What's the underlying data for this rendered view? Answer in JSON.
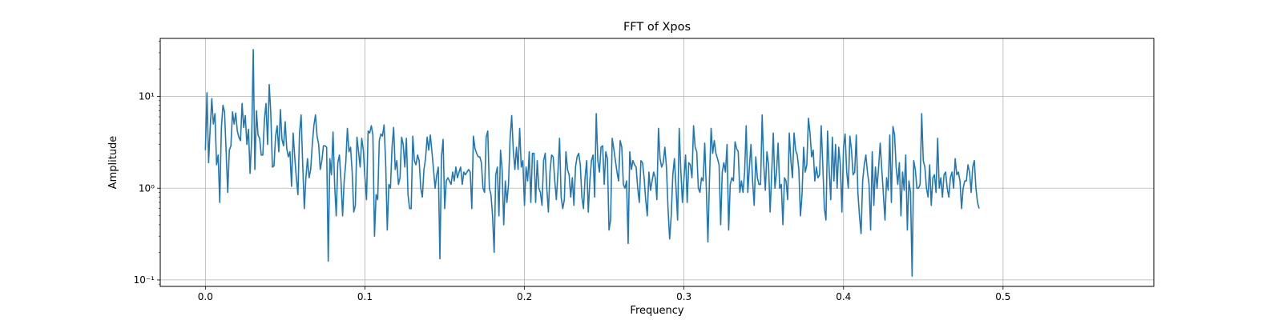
{
  "chart_data": {
    "type": "line",
    "title": "FFT of Xpos",
    "xlabel": "Frequency",
    "ylabel": "Amplitude",
    "xlim": [
      -0.0283,
      0.5945
    ],
    "ylim": [
      0.085,
      43
    ],
    "yscale": "log",
    "grid": true,
    "x_ticks": [
      0.0,
      0.1,
      0.2,
      0.3,
      0.4,
      0.5
    ],
    "x_tick_labels": [
      "0.0",
      "0.1",
      "0.2",
      "0.3",
      "0.4",
      "0.5"
    ],
    "y_ticks": [
      0.1,
      1,
      10
    ],
    "y_tick_labels": [
      "10⁻¹",
      "10⁰",
      "10¹"
    ],
    "line_color": "#1f77b4",
    "series": [
      {
        "x_start": 0.0,
        "x_step": 0.001,
        "values": [
          2.6,
          11.0,
          1.9,
          4.5,
          9.5,
          5.0,
          6.5,
          1.8,
          2.3,
          0.7,
          4.5,
          8.0,
          6.8,
          2.5,
          0.9,
          2.6,
          2.9,
          6.8,
          5.0,
          6.6,
          4.2,
          3.6,
          3.3,
          8.4,
          4.6,
          6.2,
          3.0,
          4.4,
          1.45,
          3.4,
          32.5,
          1.6,
          7.0,
          3.8,
          3.5,
          2.3,
          2.3,
          5.6,
          8.4,
          3.0,
          13.5,
          6.5,
          1.7,
          1.75,
          3.7,
          4.8,
          2.5,
          7.2,
          3.4,
          2.9,
          5.3,
          2.7,
          2.2,
          2.5,
          1.05,
          4.0,
          2.2,
          1.3,
          0.85,
          4.0,
          6.3,
          1.8,
          0.6,
          1.3,
          2.1,
          1.3,
          1.6,
          3.0,
          4.8,
          6.3,
          3.7,
          3.0,
          1.6,
          2.0,
          2.9,
          2.9,
          2.8,
          0.16,
          2.1,
          1.4,
          4.1,
          1.1,
          0.5,
          1.9,
          2.3,
          1.2,
          0.5,
          1.2,
          1.9,
          4.5,
          2.5,
          2.8,
          1.5,
          0.55,
          0.65,
          3.6,
          2.5,
          1.7,
          3.5,
          2.6,
          1.3,
          0.75,
          4.2,
          4.0,
          4.8,
          3.8,
          0.3,
          0.85,
          0.75,
          3.3,
          3.9,
          3.7,
          4.9,
          1.9,
          0.35,
          1.1,
          1.0,
          2.8,
          4.6,
          1.6,
          2.0,
          1.1,
          1.3,
          3.6,
          3.0,
          1.7,
          3.5,
          0.85,
          0.6,
          0.6,
          3.7,
          2.0,
          1.8,
          2.3,
          2.0,
          1.0,
          0.8,
          1.6,
          2.1,
          3.6,
          2.6,
          3.8,
          2.5,
          1.6,
          1.0,
          1.4,
          1.7,
          0.17,
          2.2,
          3.4,
          0.6,
          1.2,
          1.3,
          1.2,
          1.1,
          1.5,
          1.2,
          1.7,
          1.3,
          1.5,
          1.7,
          1.1,
          1.5,
          1.4,
          1.5,
          1.6,
          1.5,
          0.6,
          3.7,
          2.7,
          2.4,
          2.2,
          2.2,
          1.9,
          1.0,
          0.9,
          3.6,
          4.2,
          1.0,
          0.85,
          0.5,
          0.2,
          1.4,
          1.7,
          0.5,
          2.6,
          1.6,
          0.4,
          1.2,
          0.7,
          1.1,
          3.5,
          6.2,
          2.6,
          1.6,
          2.8,
          1.6,
          4.5,
          1.7,
          2.0,
          0.65,
          1.7,
          1.2,
          2.5,
          0.7,
          2.4,
          2.4,
          0.7,
          2.0,
          1.0,
          0.9,
          0.65,
          2.0,
          2.4,
          1.0,
          0.55,
          1.5,
          2.3,
          2.2,
          1.2,
          0.75,
          1.5,
          3.5,
          0.8,
          0.6,
          0.75,
          2.5,
          1.6,
          1.4,
          0.8,
          1.3,
          0.65,
          1.7,
          2.2,
          2.4,
          1.8,
          0.8,
          0.6,
          1.3,
          2.0,
          0.55,
          1.2,
          2.0,
          2.3,
          0.8,
          6.5,
          2.0,
          1.5,
          2.8,
          2.9,
          1.1,
          2.5,
          2.1,
          0.35,
          0.45,
          3.5,
          2.7,
          2.0,
          1.5,
          1.2,
          3.3,
          2.8,
          1.1,
          1.0,
          1.2,
          0.25,
          2.5,
          1.6,
          2.0,
          1.8,
          1.7,
          1.0,
          0.7,
          2.0,
          1.9,
          1.3,
          0.75,
          0.5,
          1.5,
          0.95,
          1.2,
          1.5,
          1.3,
          0.75,
          4.5,
          2.1,
          1.7,
          1.9,
          2.8,
          1.7,
          0.6,
          0.28,
          0.5,
          1.4,
          2.1,
          1.0,
          0.45,
          4.5,
          1.6,
          0.7,
          1.3,
          2.3,
          0.7,
          1.9,
          1.8,
          1.3,
          4.8,
          2.8,
          2.5,
          1.0,
          0.9,
          1.3,
          1.2,
          3.1,
          1.0,
          0.26,
          1.3,
          4.5,
          2.4,
          3.3,
          2.4,
          2.1,
          1.8,
          0.4,
          1.5,
          1.9,
          1.5,
          3.0,
          0.35,
          1.1,
          1.3,
          1.2,
          3.2,
          2.7,
          2.5,
          0.9,
          1.2,
          0.9,
          1.5,
          4.8,
          0.9,
          1.7,
          3.0,
          1.2,
          0.65,
          2.2,
          1.3,
          1.1,
          1.1,
          6.3,
          1.8,
          0.95,
          2.5,
          1.8,
          0.55,
          1.5,
          4.0,
          1.0,
          1.5,
          3.1,
          1.0,
          1.1,
          0.4,
          1.3,
          1.2,
          0.75,
          4.0,
          2.0,
          1.3,
          4.0,
          2.6,
          2.3,
          1.6,
          0.5,
          0.85,
          2.8,
          1.5,
          1.8,
          5.8,
          4.0,
          2.2,
          2.6,
          1.2,
          1.7,
          1.3,
          1.4,
          4.8,
          1.8,
          0.6,
          0.45,
          4.2,
          1.6,
          0.75,
          3.6,
          1.2,
          3.0,
          1.0,
          2.8,
          1.8,
          0.55,
          2.8,
          3.9,
          1.5,
          1.0,
          3.7,
          2.6,
          1.4,
          1.5,
          3.8,
          0.9,
          0.5,
          0.32,
          1.2,
          1.8,
          2.3,
          1.5,
          1.1,
          0.35,
          2.5,
          0.65,
          1.7,
          1.0,
          1.7,
          3.1,
          1.6,
          0.85,
          0.45,
          1.3,
          0.95,
          3.8,
          0.7,
          4.7,
          3.8,
          1.7,
          1.1,
          1.9,
          0.5,
          1.5,
          0.95,
          2.3,
          0.35,
          1.2,
          0.9,
          0.11,
          2.0,
          1.6,
          1.0,
          1.0,
          1.1,
          6.5,
          2.0,
          1.7,
          1.0,
          0.8,
          1.8,
          0.65,
          1.3,
          1.4,
          0.9,
          3.5,
          1.0,
          1.3,
          0.8,
          1.4,
          1.5,
          1.0,
          0.8,
          1.3,
          1.5,
          1.0,
          2.1,
          1.4,
          1.5,
          1.2,
          0.6,
          1.0,
          1.2,
          1.2,
          1.8,
          1.5,
          0.9,
          1.7,
          2.0,
          1.0,
          0.7,
          0.6
        ]
      }
    ]
  }
}
